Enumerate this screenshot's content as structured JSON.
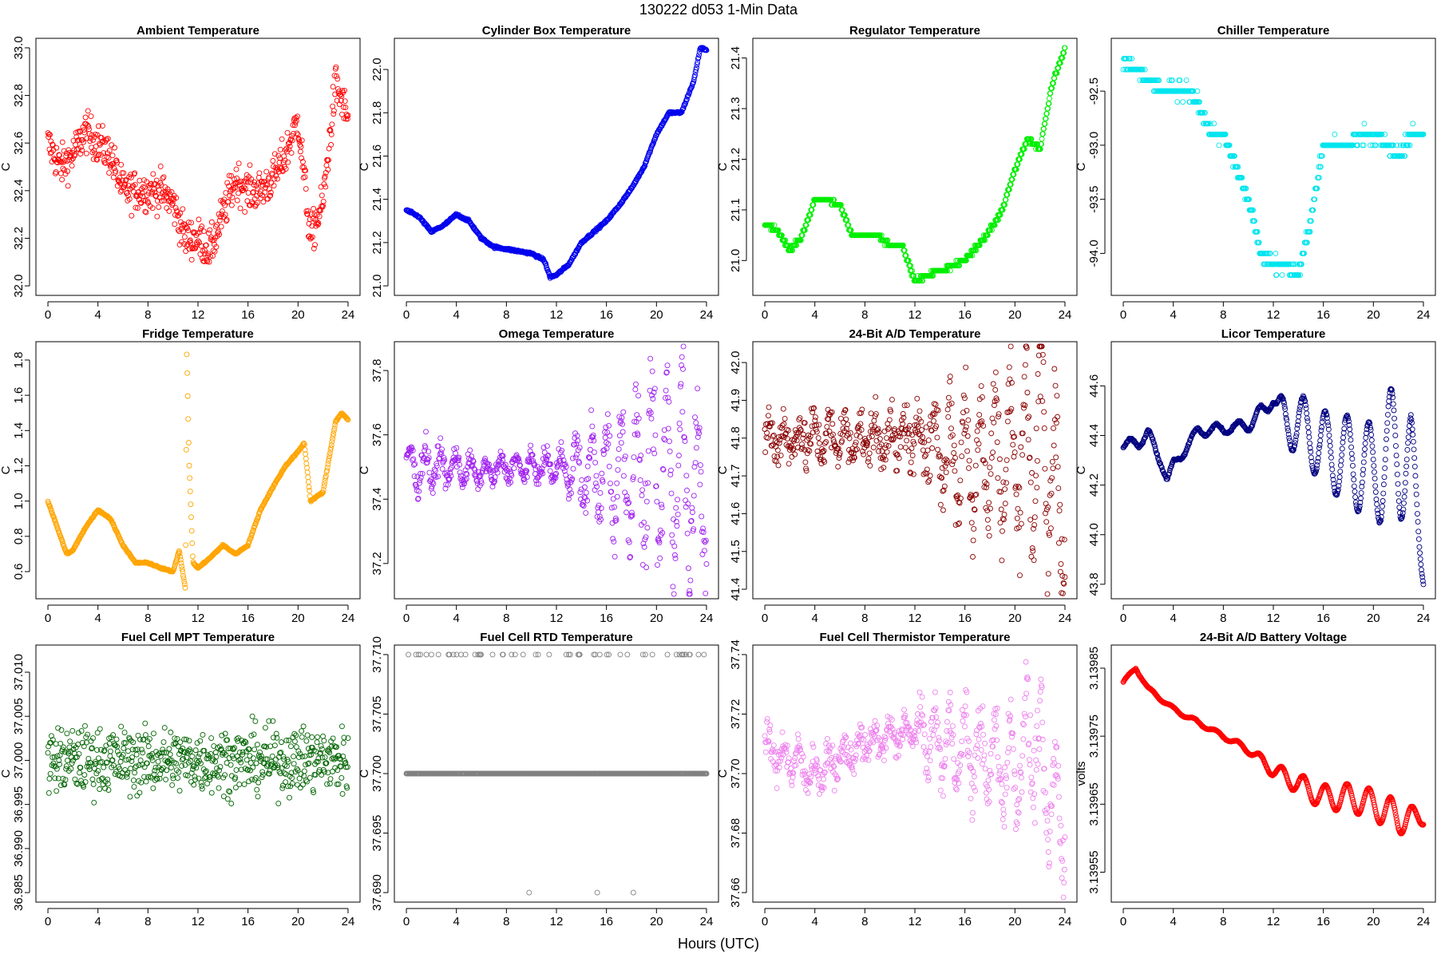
{
  "figure": {
    "title": "130222   d053   1-Min Data",
    "xlabel": "Hours (UTC)"
  },
  "chart_data": [
    {
      "type": "scatter",
      "title": "Ambient Temperature",
      "ylabel": "C",
      "color": "#ff0000",
      "xlim": [
        0,
        24
      ],
      "ylim": [
        32.0,
        33.0
      ],
      "xticks": [
        0,
        4,
        8,
        12,
        16,
        20,
        24
      ],
      "xtick_labels": [
        "0",
        "4",
        "8",
        "12",
        "16",
        "20",
        "24"
      ],
      "yticks": [
        32.0,
        32.2,
        32.4,
        32.6,
        32.8,
        33.0
      ],
      "ytick_labels": [
        "32.0",
        "32.2",
        "32.4",
        "32.6",
        "32.8",
        "33.0"
      ],
      "x": [
        0,
        1,
        2,
        3,
        4,
        5,
        6,
        7,
        8,
        9,
        10,
        11,
        12,
        13,
        14,
        15,
        16,
        17,
        18,
        19,
        20,
        21,
        22,
        23,
        24
      ],
      "y": [
        32.6,
        32.5,
        32.55,
        32.65,
        32.6,
        32.55,
        32.4,
        32.4,
        32.4,
        32.4,
        32.35,
        32.2,
        32.2,
        32.15,
        32.3,
        32.45,
        32.4,
        32.4,
        32.45,
        32.55,
        32.7,
        32.2,
        32.35,
        32.85,
        32.7
      ],
      "noise": 0.08,
      "style": "noisy"
    },
    {
      "type": "scatter",
      "title": "Cylinder Box Temperature",
      "ylabel": "C",
      "color": "#0000ee",
      "xlim": [
        0,
        24
      ],
      "ylim": [
        21.0,
        22.1
      ],
      "xticks": [
        0,
        4,
        8,
        12,
        16,
        20,
        24
      ],
      "xtick_labels": [
        "0",
        "4",
        "8",
        "12",
        "16",
        "20",
        "24"
      ],
      "yticks": [
        21.0,
        21.2,
        21.4,
        21.6,
        21.8,
        22.0
      ],
      "ytick_labels": [
        "21.0",
        "21.2",
        "21.4",
        "21.6",
        "21.8",
        "22.0"
      ],
      "x": [
        0,
        1,
        2,
        3,
        4,
        5,
        6,
        7,
        8,
        9,
        10,
        11,
        11.5,
        12,
        13,
        14,
        15,
        16,
        17,
        18,
        19,
        20,
        21,
        22,
        23,
        23.5,
        24
      ],
      "y": [
        21.35,
        21.32,
        21.25,
        21.28,
        21.33,
        21.3,
        21.22,
        21.18,
        21.17,
        21.16,
        21.15,
        21.12,
        21.04,
        21.05,
        21.1,
        21.2,
        21.25,
        21.3,
        21.37,
        21.45,
        21.55,
        21.7,
        21.8,
        21.8,
        21.95,
        22.1,
        22.09
      ],
      "noise": 0.005,
      "style": "smooth"
    },
    {
      "type": "scatter",
      "title": "Regulator Temperature",
      "ylabel": "C",
      "color": "#00ee00",
      "xlim": [
        0,
        24
      ],
      "ylim": [
        20.95,
        21.42
      ],
      "xticks": [
        0,
        4,
        8,
        12,
        16,
        20,
        24
      ],
      "xtick_labels": [
        "0",
        "4",
        "8",
        "12",
        "16",
        "20",
        "24"
      ],
      "yticks": [
        21.0,
        21.1,
        21.2,
        21.3,
        21.4
      ],
      "ytick_labels": [
        "21.0",
        "21.1",
        "21.2",
        "21.3",
        "21.4"
      ],
      "x": [
        0,
        1,
        2,
        3,
        4,
        5,
        6,
        7,
        8,
        9,
        10,
        11,
        12,
        13,
        14,
        15,
        16,
        17,
        18,
        19,
        20,
        21,
        22,
        23,
        24
      ],
      "y": [
        21.07,
        21.06,
        21.02,
        21.05,
        21.12,
        21.12,
        21.11,
        21.05,
        21.05,
        21.05,
        21.03,
        21.03,
        20.96,
        20.97,
        20.98,
        20.99,
        21.0,
        21.03,
        21.06,
        21.1,
        21.18,
        21.24,
        21.22,
        21.35,
        21.42
      ],
      "noise": 0.003,
      "style": "stepped",
      "step": 0.01
    },
    {
      "type": "scatter",
      "title": "Chiller Temperature",
      "ylabel": "C",
      "color": "#00e5ee",
      "xlim": [
        0,
        24
      ],
      "ylim": [
        -94.3,
        -92.1
      ],
      "xticks": [
        0,
        4,
        8,
        12,
        16,
        20,
        24
      ],
      "xtick_labels": [
        "0",
        "4",
        "8",
        "12",
        "16",
        "20",
        "24"
      ],
      "yticks": [
        -94.0,
        -93.5,
        -93.0,
        -92.5
      ],
      "ytick_labels": [
        "-94.0",
        "-93.5",
        "-93.0",
        "-92.5"
      ],
      "x": [
        0,
        1,
        2,
        3,
        4,
        5,
        6,
        7,
        8,
        9,
        10,
        11,
        12,
        13,
        14,
        15,
        16,
        17,
        18,
        19,
        20,
        21,
        22,
        23,
        24
      ],
      "y": [
        -92.2,
        -92.3,
        -92.4,
        -92.5,
        -92.5,
        -92.5,
        -92.6,
        -92.9,
        -92.9,
        -93.2,
        -93.5,
        -94.0,
        -94.1,
        -94.1,
        -94.2,
        -93.7,
        -93.0,
        -93.0,
        -93.0,
        -92.9,
        -92.9,
        -93.0,
        -93.1,
        -92.9,
        -92.9
      ],
      "noise": 0.06,
      "style": "stepped",
      "step": 0.1
    },
    {
      "type": "scatter",
      "title": "Fridge Temperature",
      "ylabel": "C",
      "color": "#ffa500",
      "xlim": [
        0,
        24
      ],
      "ylim": [
        0.5,
        1.85
      ],
      "xticks": [
        0,
        4,
        8,
        12,
        16,
        20,
        24
      ],
      "xtick_labels": [
        "0",
        "4",
        "8",
        "12",
        "16",
        "20",
        "24"
      ],
      "yticks": [
        0.6,
        0.8,
        1.0,
        1.2,
        1.4,
        1.6,
        1.8
      ],
      "ytick_labels": [
        "0.6",
        "0.8",
        "1.0",
        "1.2",
        "1.4",
        "1.6",
        "1.8"
      ],
      "x": [
        0,
        1,
        1.5,
        2,
        3,
        4,
        5,
        6,
        7,
        8,
        9,
        10,
        10.5,
        11,
        11.1,
        11.3,
        11.6,
        12,
        13,
        14,
        15,
        16,
        17,
        18,
        19,
        20,
        20.5,
        21,
        22,
        23,
        23.5,
        24
      ],
      "y": [
        1.0,
        0.8,
        0.7,
        0.72,
        0.85,
        0.95,
        0.9,
        0.75,
        0.65,
        0.65,
        0.62,
        0.6,
        0.72,
        0.5,
        1.85,
        1.2,
        0.65,
        0.62,
        0.68,
        0.75,
        0.7,
        0.75,
        0.95,
        1.08,
        1.2,
        1.28,
        1.33,
        1.0,
        1.05,
        1.45,
        1.5,
        1.46
      ],
      "noise": 0.004,
      "style": "smooth"
    },
    {
      "type": "scatter",
      "title": "Omega Temperature",
      "ylabel": "C",
      "color": "#a020f0",
      "xlim": [
        0,
        24
      ],
      "ylim": [
        37.12,
        37.86
      ],
      "xticks": [
        0,
        4,
        8,
        12,
        16,
        20,
        24
      ],
      "xtick_labels": [
        "0",
        "4",
        "8",
        "12",
        "16",
        "20",
        "24"
      ],
      "yticks": [
        37.2,
        37.4,
        37.6,
        37.8
      ],
      "ytick_labels": [
        "37.2",
        "37.4",
        "37.6",
        "37.8"
      ],
      "x": [
        0,
        2,
        4,
        6,
        8,
        10,
        12,
        13,
        14,
        16,
        18,
        20,
        22,
        24
      ],
      "y": [
        37.5,
        37.5,
        37.5,
        37.48,
        37.5,
        37.5,
        37.5,
        37.5,
        37.48,
        37.48,
        37.48,
        37.48,
        37.5,
        37.4
      ],
      "amp": [
        0.06,
        0.06,
        0.04,
        0.03,
        0.03,
        0.03,
        0.04,
        0.08,
        0.1,
        0.15,
        0.18,
        0.25,
        0.3,
        0.25
      ],
      "noise": 0.01,
      "style": "osc"
    },
    {
      "type": "scatter",
      "title": "24-Bit A/D Temperature",
      "ylabel": "C",
      "color": "#8b0000",
      "xlim": [
        0,
        24
      ],
      "ylim": [
        41.4,
        42.03
      ],
      "xticks": [
        0,
        4,
        8,
        12,
        16,
        20,
        24
      ],
      "xtick_labels": [
        "0",
        "4",
        "8",
        "12",
        "16",
        "20",
        "24"
      ],
      "yticks": [
        41.4,
        41.5,
        41.6,
        41.7,
        41.8,
        41.9,
        42.0
      ],
      "ytick_labels": [
        "41.4",
        "41.5",
        "41.6",
        "41.7",
        "41.8",
        "41.9",
        "42.0"
      ],
      "x": [
        0,
        4,
        8,
        12,
        13,
        14,
        16,
        18,
        20,
        22,
        24
      ],
      "y": [
        41.8,
        41.8,
        41.8,
        41.8,
        41.8,
        41.78,
        41.74,
        41.75,
        41.76,
        41.8,
        41.6
      ],
      "amp": [
        0.04,
        0.04,
        0.04,
        0.05,
        0.06,
        0.1,
        0.15,
        0.15,
        0.18,
        0.25,
        0.2
      ],
      "noise": 0.04,
      "style": "osc"
    },
    {
      "type": "scatter",
      "title": "Licor Temperature",
      "ylabel": "C",
      "color": "#000080",
      "xlim": [
        0,
        24
      ],
      "ylim": [
        43.78,
        44.74
      ],
      "xticks": [
        0,
        4,
        8,
        12,
        16,
        20,
        24
      ],
      "xtick_labels": [
        "0",
        "4",
        "8",
        "12",
        "16",
        "20",
        "24"
      ],
      "yticks": [
        43.8,
        44.0,
        44.2,
        44.4,
        44.6
      ],
      "ytick_labels": [
        "43.8",
        "44.0",
        "44.2",
        "44.4",
        "44.6"
      ],
      "x": [
        0,
        1,
        2,
        3,
        3.5,
        4,
        5,
        6,
        7,
        8,
        9,
        10,
        11,
        12,
        13,
        14,
        16,
        18,
        20,
        22,
        23,
        24
      ],
      "y": [
        44.35,
        44.38,
        44.4,
        44.3,
        44.22,
        44.28,
        44.35,
        44.42,
        44.42,
        44.43,
        44.43,
        44.45,
        44.48,
        44.55,
        44.45,
        44.45,
        44.35,
        44.3,
        44.25,
        44.35,
        44.3,
        43.85
      ],
      "amp": [
        0.01,
        0.03,
        0.03,
        0.02,
        0.01,
        0.02,
        0.02,
        0.02,
        0.02,
        0.02,
        0.02,
        0.03,
        0.04,
        0.02,
        0.1,
        0.12,
        0.15,
        0.18,
        0.2,
        0.3,
        0.2,
        0.05
      ],
      "noise": 0.004,
      "style": "wave"
    },
    {
      "type": "scatter",
      "title": "Fuel Cell MPT Temperature",
      "ylabel": "C",
      "color": "#006400",
      "xlim": [
        0,
        24
      ],
      "ylim": [
        36.985,
        37.012
      ],
      "xticks": [
        0,
        4,
        8,
        12,
        16,
        20,
        24
      ],
      "xtick_labels": [
        "0",
        "4",
        "8",
        "12",
        "16",
        "20",
        "24"
      ],
      "yticks": [
        36.985,
        36.99,
        36.995,
        37.0,
        37.005,
        37.01
      ],
      "ytick_labels": [
        "36.985",
        "36.990",
        "36.995",
        "37.000",
        "37.005",
        "37.010"
      ],
      "x": [
        0,
        24
      ],
      "y": [
        37.0,
        37.0
      ],
      "noise": 0.0035,
      "style": "gauss"
    },
    {
      "type": "scatter",
      "title": "Fuel Cell RTD Temperature",
      "ylabel": "C",
      "color": "#808080",
      "xlim": [
        0,
        24
      ],
      "ylim": [
        37.69,
        37.71
      ],
      "xticks": [
        0,
        4,
        8,
        12,
        16,
        20,
        24
      ],
      "xtick_labels": [
        "0",
        "4",
        "8",
        "12",
        "16",
        "20",
        "24"
      ],
      "yticks": [
        37.69,
        37.695,
        37.7,
        37.705,
        37.71
      ],
      "ytick_labels": [
        "37.690",
        "37.695",
        "37.700",
        "37.705",
        "37.710"
      ],
      "x": [
        0,
        24
      ],
      "y": [
        37.7,
        37.7
      ],
      "noise": 0,
      "style": "rtd"
    },
    {
      "type": "scatter",
      "title": "Fuel Cell Thermistor Temperature",
      "ylabel": "C",
      "color": "#ee82ee",
      "xlim": [
        0,
        24
      ],
      "ylim": [
        37.66,
        37.74
      ],
      "xticks": [
        0,
        4,
        8,
        12,
        16,
        20,
        24
      ],
      "xtick_labels": [
        "0",
        "4",
        "8",
        "12",
        "16",
        "20",
        "24"
      ],
      "yticks": [
        37.66,
        37.68,
        37.7,
        37.72,
        37.74
      ],
      "ytick_labels": [
        "37.66",
        "37.68",
        "37.70",
        "37.72",
        "37.74"
      ],
      "x": [
        0,
        2,
        4,
        6,
        8,
        10,
        12,
        13,
        14,
        16,
        18,
        20,
        21.5,
        22,
        23,
        24
      ],
      "y": [
        37.708,
        37.705,
        37.7,
        37.705,
        37.71,
        37.712,
        37.715,
        37.712,
        37.71,
        37.708,
        37.705,
        37.702,
        37.715,
        37.7,
        37.69,
        37.685
      ],
      "amp": [
        0.005,
        0.005,
        0.005,
        0.004,
        0.004,
        0.004,
        0.005,
        0.008,
        0.01,
        0.012,
        0.013,
        0.015,
        0.02,
        0.02,
        0.018,
        0.015
      ],
      "noise": 0.003,
      "style": "osc"
    },
    {
      "type": "scatter",
      "title": "24-Bit A/D Battery Voltage",
      "ylabel": "volts",
      "color": "#ff0000",
      "xlim": [
        0,
        24
      ],
      "ylim": [
        3.13952,
        3.13987
      ],
      "xticks": [
        0,
        4,
        8,
        12,
        16,
        20,
        24
      ],
      "xtick_labels": [
        "0",
        "4",
        "8",
        "12",
        "16",
        "20",
        "24"
      ],
      "yticks": [
        3.13955,
        3.13965,
        3.13975,
        3.13985
      ],
      "ytick_labels": [
        "3.13955",
        "3.13965",
        "3.13975",
        "3.13985"
      ],
      "x": [
        0,
        1,
        2,
        4,
        6,
        8,
        10,
        12,
        14,
        16,
        18,
        20,
        22,
        24
      ],
      "y": [
        3.13983,
        3.13985,
        3.13982,
        3.13979,
        3.13977,
        3.13975,
        3.13973,
        3.1397,
        3.13968,
        3.13966,
        3.13966,
        3.13965,
        3.13963,
        3.13963
      ],
      "amp": [
        2e-06,
        2e-06,
        2e-06,
        3e-06,
        3e-06,
        3e-06,
        5e-06,
        1e-05,
        1.5e-05,
        1.8e-05,
        2e-05,
        2.2e-05,
        2.5e-05,
        1e-05
      ],
      "noise": 5e-07,
      "style": "wave"
    }
  ]
}
